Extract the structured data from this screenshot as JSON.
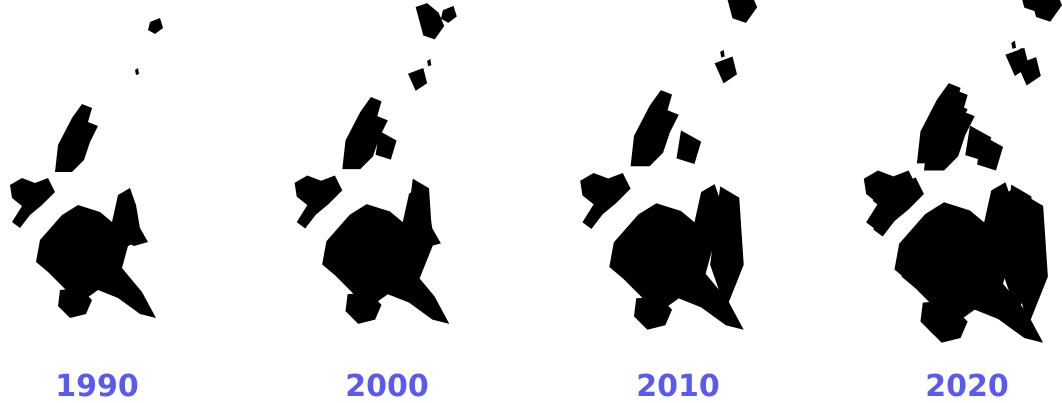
{
  "panels": [
    {
      "label": "1990"
    },
    {
      "label": "2000"
    },
    {
      "label": "2010"
    },
    {
      "label": "2020"
    }
  ]
}
